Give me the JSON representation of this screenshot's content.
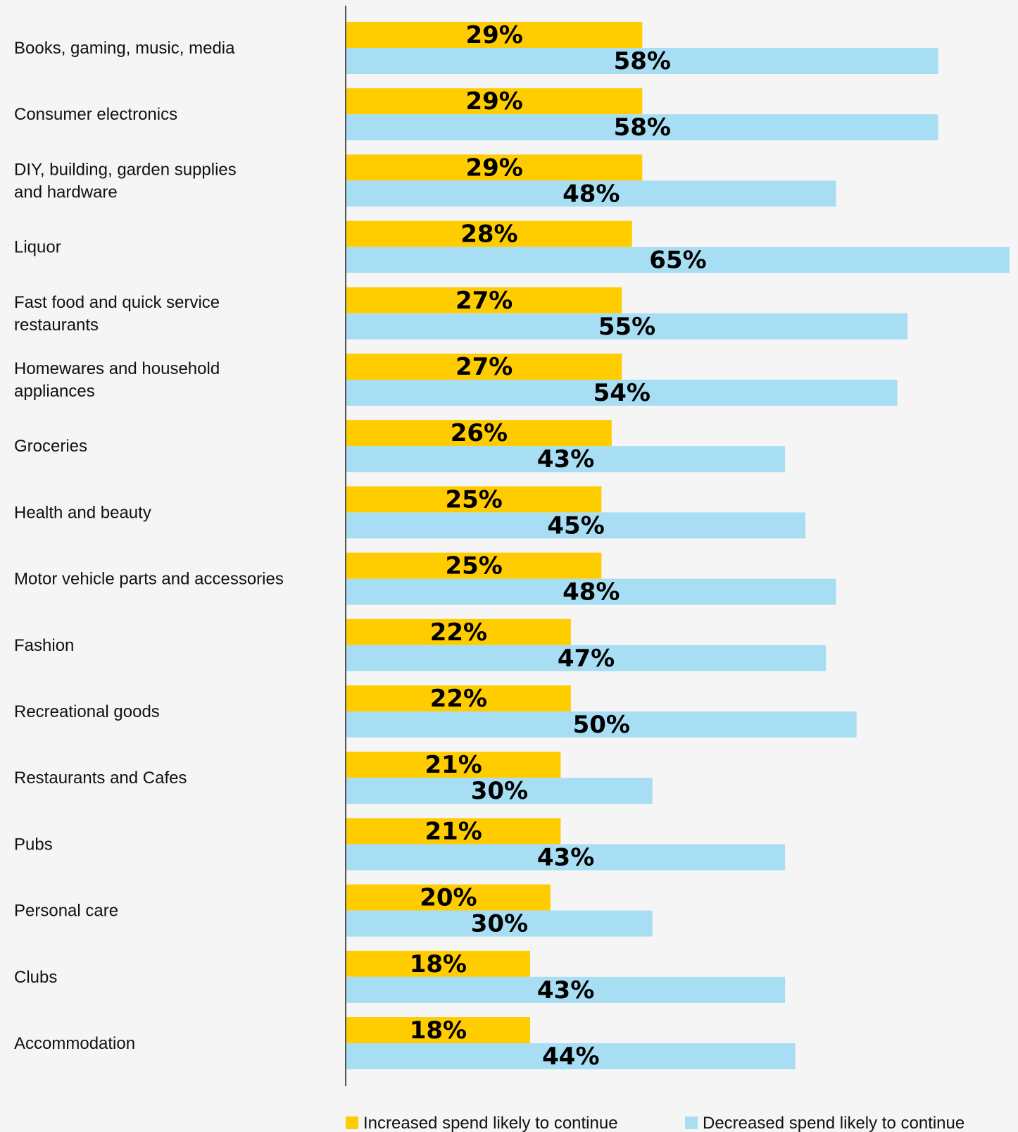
{
  "chart_data": {
    "type": "bar",
    "orientation": "horizontal",
    "categories": [
      "Books, gaming, music, media",
      "Consumer electronics",
      "DIY, building, garden supplies\nand hardware",
      "Liquor",
      "Fast food and quick service\nrestaurants",
      "Homewares and household\nappliances",
      "Groceries",
      "Health and beauty",
      "Motor vehicle parts and accessories",
      "Fashion",
      "Recreational goods",
      "Restaurants and Cafes",
      "Pubs",
      "Personal care",
      "Clubs",
      "Accommodation"
    ],
    "series": [
      {
        "name": "Increased spend likely to continue",
        "color": "#ffcc00",
        "values": [
          29,
          29,
          29,
          28,
          27,
          27,
          26,
          25,
          25,
          22,
          22,
          21,
          21,
          20,
          18,
          18
        ],
        "labels": [
          "29%",
          "29%",
          "29%",
          "28%",
          "27%",
          "27%",
          "26%",
          "25%",
          "25%",
          "22%",
          "22%",
          "21%",
          "21%",
          "20%",
          "18%",
          "18%"
        ]
      },
      {
        "name": "Decreased spend likely to continue",
        "color": "#a8def3",
        "values": [
          58,
          58,
          48,
          65,
          55,
          54,
          43,
          45,
          48,
          47,
          50,
          30,
          43,
          30,
          43,
          44
        ],
        "labels": [
          "58%",
          "58%",
          "48%",
          "65%",
          "55%",
          "54%",
          "43%",
          "45%",
          "48%",
          "47%",
          "50%",
          "30%",
          "43%",
          "30%",
          "43%",
          "44%"
        ]
      }
    ],
    "xlim": [
      0,
      65
    ],
    "title": "",
    "xlabel": "",
    "ylabel": "",
    "grid": false,
    "legend_position": "bottom"
  }
}
